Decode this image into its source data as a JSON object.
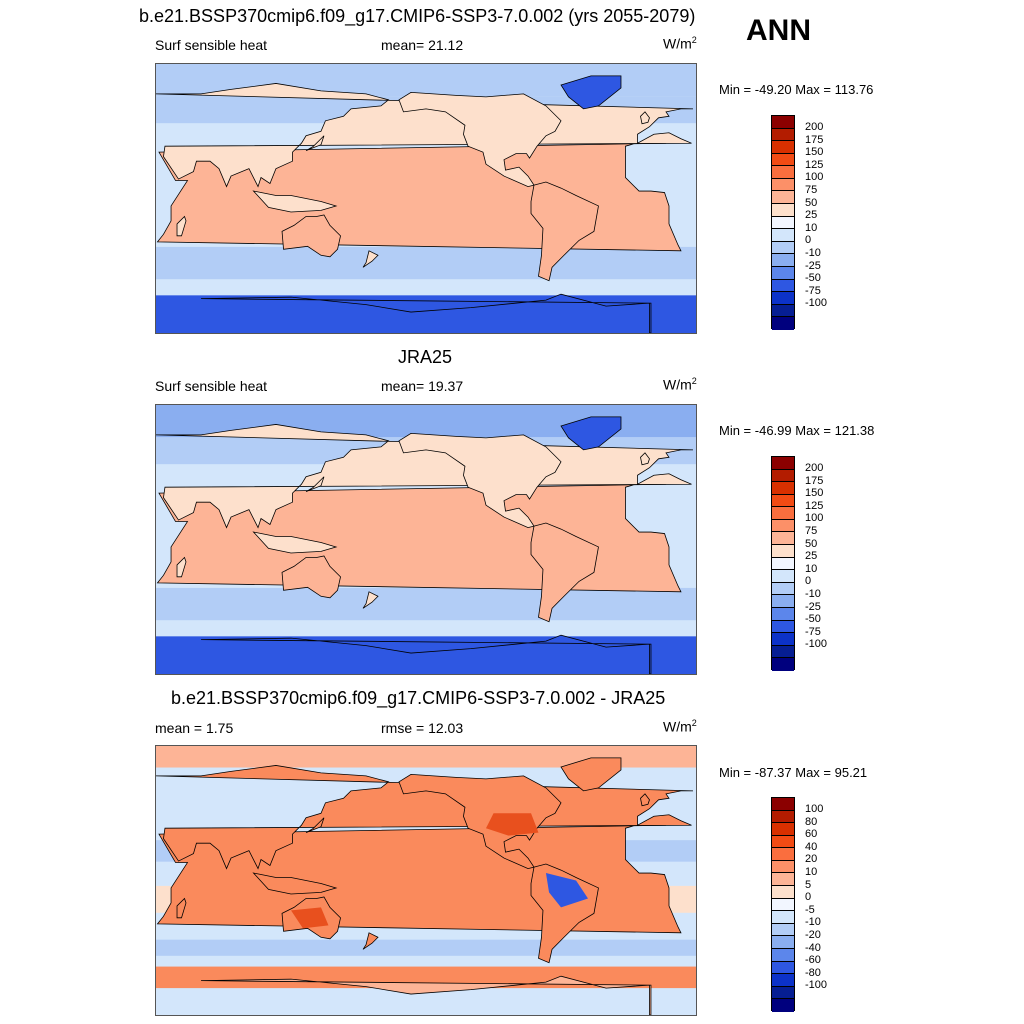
{
  "season": "ANN",
  "units_main": "W/m",
  "units_sup": "2",
  "panels": [
    {
      "title": "b.e21.BSSP370cmip6.f09_g17.CMIP6-SSP3-7.0.002 (yrs 2055-2079)",
      "left_label": "Surf sensible heat",
      "center_label": "mean=  21.12",
      "minmax": "Min = -49.20 Max = 113.76",
      "palette": "abs",
      "cb_labels": [
        "200",
        "175",
        "150",
        "125",
        "100",
        "75",
        "50",
        "25",
        "10",
        "0",
        "-10",
        "-25",
        "-50",
        "-75",
        "-100"
      ]
    },
    {
      "title": "JRA25",
      "left_label": "Surf sensible heat",
      "center_label": "mean=  19.37",
      "minmax": "Min = -46.99 Max = 121.38",
      "palette": "abs",
      "cb_labels": [
        "200",
        "175",
        "150",
        "125",
        "100",
        "75",
        "50",
        "25",
        "10",
        "0",
        "-10",
        "-25",
        "-50",
        "-75",
        "-100"
      ]
    },
    {
      "title": "b.e21.BSSP370cmip6.f09_g17.CMIP6-SSP3-7.0.002 - JRA25",
      "left_label": "mean =   1.75",
      "center_label": "rmse =  12.03",
      "minmax": "Min = -87.37 Max =  95.21",
      "palette": "diff",
      "cb_labels": [
        "100",
        "80",
        "60",
        "40",
        "20",
        "10",
        "5",
        "0",
        "-5",
        "-10",
        "-20",
        "-40",
        "-60",
        "-80",
        "-100"
      ]
    }
  ],
  "colorbar_colors": [
    "#8b0000",
    "#b31c00",
    "#d83000",
    "#f24b14",
    "#fa6e3e",
    "#fc9068",
    "#fdb496",
    "#fde0cc",
    "#f2f6ff",
    "#d3e6fb",
    "#b2cdf6",
    "#8aaef0",
    "#5c86eb",
    "#2e57e2",
    "#0c32c8",
    "#061e93",
    "#00007e"
  ],
  "map_colors": {
    "ocean": "#d3e6fb",
    "light_blue": "#b2cdf6",
    "mid_blue": "#8aaef0",
    "deep_blue": "#2e57e2",
    "land_warm": "#fde0cc",
    "land_orange": "#fdb496",
    "land_hot": "#fa8a5c",
    "land_red": "#e8501e",
    "coast": "#000000"
  }
}
